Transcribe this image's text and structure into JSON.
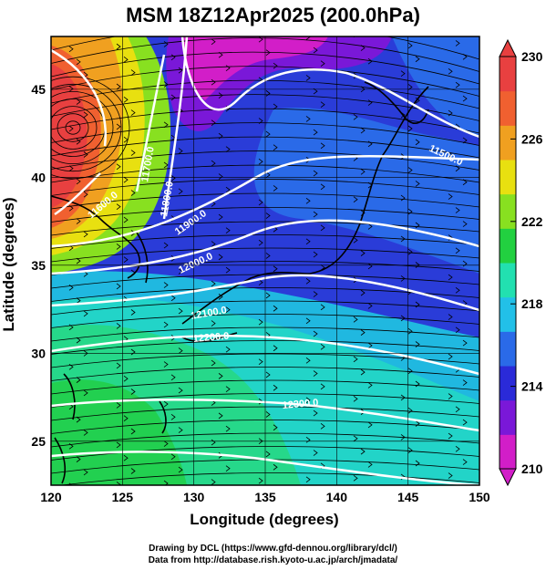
{
  "title": "MSM 18Z12Apr2025 (200.0hPa)",
  "map": {
    "x_axis_label": "Longitude (degrees)",
    "y_axis_label": "Latitude  (degrees)",
    "lon_range": [
      120,
      150
    ],
    "lat_range": [
      22.5,
      48
    ],
    "lon_ticks": [
      "120",
      "125",
      "130",
      "135",
      "140",
      "145",
      "150"
    ],
    "lat_ticks": [
      "25",
      "30",
      "35",
      "40",
      "45"
    ],
    "shading_variable": "temperature (K)",
    "contour_variable": "geopotential height (m)"
  },
  "contours": [
    {
      "label": "11600.0"
    },
    {
      "label": "11700.0"
    },
    {
      "label": "11800.0"
    },
    {
      "label": "11900.0"
    },
    {
      "label": "12000.0"
    },
    {
      "label": "12100.0"
    },
    {
      "label": "12200.0"
    },
    {
      "label": "12300.0"
    },
    {
      "label": "11500.0"
    }
  ],
  "colorbar": {
    "tick_labels": [
      "230",
      "226",
      "222",
      "218",
      "214",
      "210"
    ],
    "min": 210,
    "max": 230,
    "colors": [
      "#d21ec8",
      "#7a18d8",
      "#2a2ad8",
      "#2a6ae8",
      "#22c0e8",
      "#22e0b0",
      "#22d040",
      "#88e020",
      "#e8e010",
      "#f0a020",
      "#f06030",
      "#e84040"
    ]
  },
  "credits": {
    "line1": "Drawing by DCL (https://www.gfd-dennou.org/library/dcl/)",
    "line2": "Data from http://database.rish.kyoto-u.ac.jp/arch/jmadata/"
  }
}
